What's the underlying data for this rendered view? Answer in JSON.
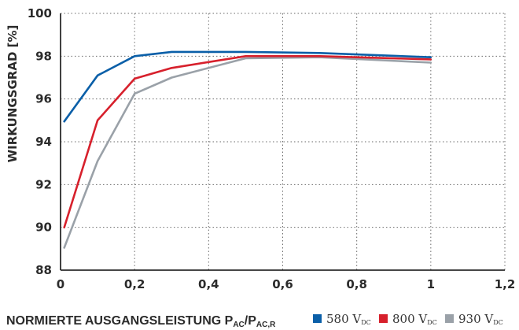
{
  "chart_data": {
    "type": "line",
    "xlabel_main": "NORMIERTE AUSGANGSLEISTUNG P",
    "xlabel_sub1": "AC",
    "xlabel_sep": "/P",
    "xlabel_sub2": "AC,R",
    "ylabel": "WIRKUNGSGRAD [%]",
    "xlim": [
      0,
      1.2
    ],
    "ylim": [
      88,
      100
    ],
    "x_ticks": [
      "0",
      "0,2",
      "0,4",
      "0,6",
      "0,8",
      "1",
      "1,2"
    ],
    "x_tick_values": [
      0,
      0.2,
      0.4,
      0.6,
      0.8,
      1.0,
      1.2
    ],
    "y_ticks": [
      "88",
      "90",
      "92",
      "94",
      "96",
      "98",
      "100"
    ],
    "y_tick_values": [
      88,
      90,
      92,
      94,
      96,
      98,
      100
    ],
    "grid": true,
    "legend_position": "bottom-right",
    "series": [
      {
        "name_main": "580 V",
        "name_sub": "DC",
        "color": "#0a5fa8",
        "x": [
          0.01,
          0.1,
          0.2,
          0.3,
          0.5,
          0.7,
          1.0
        ],
        "y": [
          94.95,
          97.1,
          98.0,
          98.2,
          98.2,
          98.15,
          97.95
        ]
      },
      {
        "name_main": "800 V",
        "name_sub": "DC",
        "color": "#d7202c",
        "x": [
          0.01,
          0.1,
          0.2,
          0.3,
          0.5,
          0.7,
          1.0
        ],
        "y": [
          90.0,
          95.0,
          96.95,
          97.45,
          98.0,
          98.0,
          97.85
        ]
      },
      {
        "name_main": "930 V",
        "name_sub": "DC",
        "color": "#9aa1a8",
        "x": [
          0.01,
          0.1,
          0.2,
          0.3,
          0.5,
          0.7,
          1.0
        ],
        "y": [
          89.05,
          93.1,
          96.25,
          97.0,
          97.9,
          97.95,
          97.7
        ]
      }
    ]
  }
}
